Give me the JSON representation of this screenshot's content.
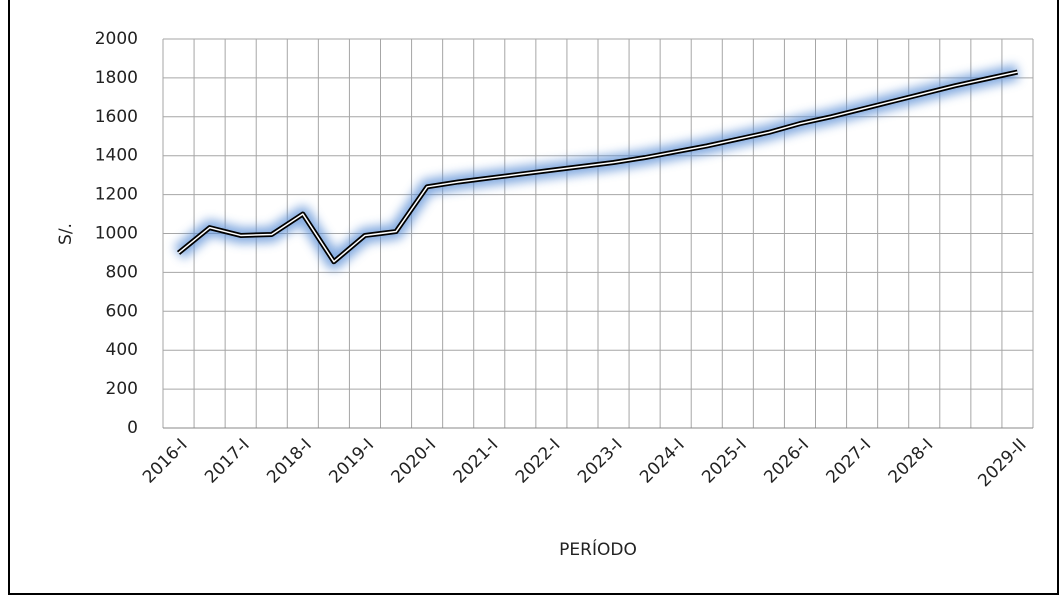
{
  "chart_data": {
    "type": "line",
    "y_label": "S/.",
    "x_label": "PERÍODO",
    "categories": [
      "2016-I",
      null,
      "2017-I",
      null,
      "2018-I",
      null,
      "2019-I",
      null,
      "2020-I",
      null,
      "2021-I",
      null,
      "2022-I",
      null,
      "2023-I",
      null,
      "2024-I",
      null,
      "2025-I",
      null,
      "2026-I",
      null,
      "2027-I",
      null,
      "2028-I",
      null,
      null,
      "2029-II"
    ],
    "series": [
      {
        "color": "#000000",
        "glow": "#5b8fd6",
        "values": [
          900,
          1030,
          990,
          995,
          1100,
          855,
          990,
          1010,
          1240,
          1265,
          1285,
          1305,
          1325,
          1345,
          1365,
          1390,
          1420,
          1450,
          1485,
          1520,
          1565,
          1600,
          1640,
          1680,
          1720,
          1760,
          1795,
          1830
        ]
      }
    ],
    "ylim": [
      0,
      2000
    ],
    "yticks": [
      0,
      200,
      400,
      600,
      800,
      1000,
      1200,
      1400,
      1600,
      1800,
      2000
    ],
    "grid": true
  }
}
